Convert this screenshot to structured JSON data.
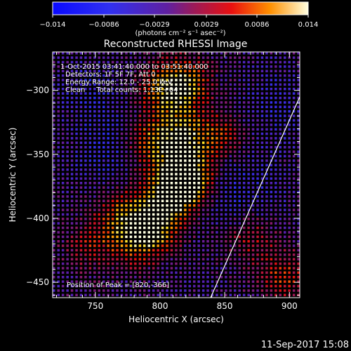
{
  "chart_data": {
    "type": "heatmap",
    "title": "Reconstructed RHESSI Image",
    "xlabel": "Heliocentric X (arcsec)",
    "ylabel": "Heliocentric Y (arcsec)",
    "xlim": [
      717,
      908
    ],
    "ylim": [
      -462,
      -270
    ],
    "x_ticks": [
      750,
      800,
      850,
      900
    ],
    "y_ticks": [
      -300,
      -350,
      -400,
      -450
    ],
    "colorbar": {
      "range": [
        -0.014,
        0.014
      ],
      "ticks": [
        "-0.014",
        "-0.0086",
        "-0.0029",
        "0.0029",
        "0.0086",
        "0.014"
      ],
      "label": "(photons cm⁻² s⁻¹ asec⁻²)"
    },
    "annotations": [
      "1-Oct-2015 03:41:40.000 to 03:51:40.000",
      "Detectors: 1F 5F 7F, Att 0",
      "Energy Range: 12.0 - 25.0 keV",
      "Clean     Total counts: 1.13E+04"
    ],
    "peak_label": "Position of Peak = [820,-366]",
    "peak_position": [
      820,
      -366
    ],
    "sources": [
      {
        "x": 820,
        "y": -366,
        "amp": 1.0
      },
      {
        "x": 808,
        "y": -380,
        "amp": 0.9
      },
      {
        "x": 793,
        "y": -405,
        "amp": 0.75
      },
      {
        "x": 815,
        "y": -335,
        "amp": 0.78
      },
      {
        "x": 790,
        "y": -340,
        "amp": 0.55
      },
      {
        "x": 770,
        "y": -395,
        "amp": 0.45
      },
      {
        "x": 780,
        "y": -415,
        "amp": 0.55
      },
      {
        "x": 845,
        "y": -335,
        "amp": 0.45
      },
      {
        "x": 818,
        "y": -295,
        "amp": 0.65
      },
      {
        "x": 803,
        "y": -298,
        "amp": 0.6
      },
      {
        "x": 745,
        "y": -420,
        "amp": 0.35
      },
      {
        "x": 895,
        "y": -445,
        "amp": 0.45
      },
      {
        "x": 870,
        "y": -415,
        "amp": 0.35
      }
    ]
  },
  "timestamp": "11-Sep-2017 15:08"
}
